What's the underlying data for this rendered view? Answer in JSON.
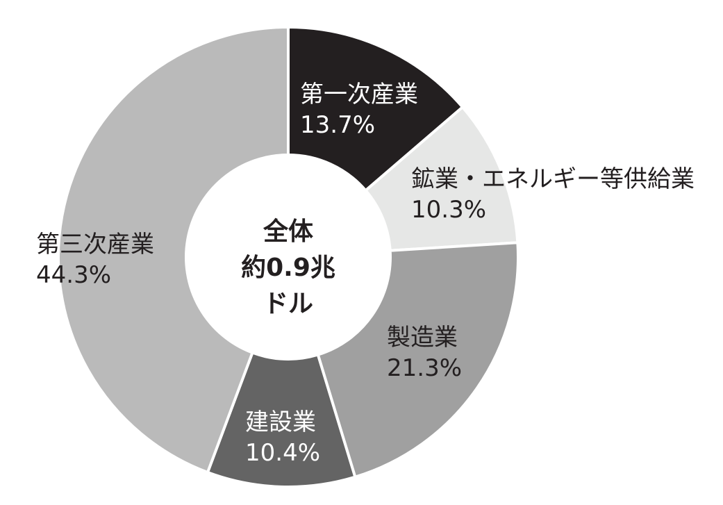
{
  "chart_data": {
    "type": "pie",
    "donut": true,
    "center_label": [
      "全体",
      "約0.9兆",
      "ドル"
    ],
    "slices": [
      {
        "label": "第一次産業",
        "value": 13.7,
        "value_label": "13.7%",
        "color": "#231f20",
        "text_color": "#ffffff"
      },
      {
        "label": "鉱業・エネルギー等供給業",
        "value": 10.3,
        "value_label": "10.3%",
        "color": "#e6e7e6",
        "text_color": "#231f20"
      },
      {
        "label": "製造業",
        "value": 21.3,
        "value_label": "21.3%",
        "color": "#a0a0a0",
        "text_color": "#231f20"
      },
      {
        "label": "建設業",
        "value": 10.4,
        "value_label": "10.4%",
        "color": "#646464",
        "text_color": "#ffffff"
      },
      {
        "label": "第三次産業",
        "value": 44.3,
        "value_label": "44.3%",
        "color": "#bababa",
        "text_color": "#231f20"
      }
    ]
  }
}
